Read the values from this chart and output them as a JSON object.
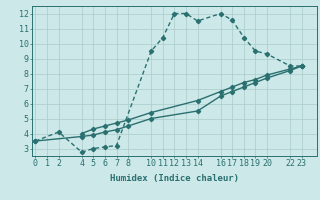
{
  "bg_color": "#cce8e8",
  "line_color": "#2a7070",
  "grid_color": "#aacccc",
  "xlabel": "Humidex (Indice chaleur)",
  "ylabel_ticks": [
    3,
    4,
    5,
    6,
    7,
    8,
    9,
    10,
    11,
    12
  ],
  "xticks": [
    0,
    1,
    2,
    4,
    5,
    6,
    7,
    8,
    10,
    11,
    12,
    13,
    14,
    16,
    17,
    18,
    19,
    20,
    22,
    23
  ],
  "xtick_labels": [
    "0",
    "1",
    "2",
    "4",
    "5",
    "6",
    "7",
    "8",
    "10",
    "11",
    "12",
    "13",
    "14",
    "16",
    "17",
    "18",
    "19",
    "20",
    "22",
    "23"
  ],
  "ylim": [
    2.5,
    12.5
  ],
  "xlim": [
    -0.3,
    24.3
  ],
  "line1_x": [
    0,
    2,
    4,
    5,
    6,
    7,
    10,
    11,
    12,
    13,
    14,
    16,
    17,
    18,
    19,
    20,
    22,
    23
  ],
  "line1_y": [
    3.5,
    4.1,
    2.75,
    3.0,
    3.1,
    3.2,
    9.5,
    10.4,
    12.0,
    12.0,
    11.5,
    12.0,
    11.55,
    10.4,
    9.5,
    9.3,
    8.5,
    8.5
  ],
  "line1_style": "--",
  "line2_x": [
    0,
    23
  ],
  "line2_y": [
    3.5,
    8.5
  ],
  "line2_style": "-",
  "line3_x": [
    0,
    23
  ],
  "line3_y": [
    3.5,
    8.5
  ],
  "line3_style": "-",
  "line3_mid_x": [
    4,
    5,
    6,
    7,
    8,
    10,
    14,
    16,
    17,
    18,
    19,
    20,
    22,
    23
  ],
  "line3_mid_y": [
    4.0,
    4.3,
    4.5,
    4.7,
    4.9,
    5.4,
    6.2,
    6.8,
    7.1,
    7.4,
    7.6,
    7.9,
    8.3,
    8.5
  ],
  "line4_x": [
    0,
    4,
    5,
    6,
    7,
    8,
    10,
    14,
    16,
    17,
    18,
    19,
    20,
    22,
    23
  ],
  "line4_y": [
    3.5,
    3.8,
    3.9,
    4.1,
    4.25,
    4.5,
    5.0,
    5.5,
    6.5,
    6.8,
    7.1,
    7.4,
    7.7,
    8.2,
    8.5
  ],
  "marker": "D",
  "marker_size": 2.2,
  "linewidth": 1.0,
  "font_size": 6.5
}
